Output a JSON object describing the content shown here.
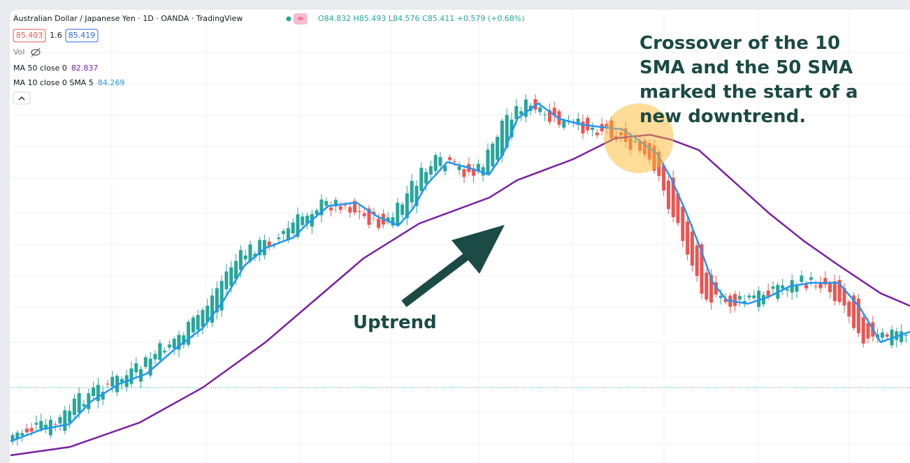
{
  "header": {
    "symbol": "Australian Dollar / Japanese Yen · 1D · OANDA · TradingView",
    "ohlc": "O84.832 H85.493 L84.576 C85.411 +0.579 (+0.68%)"
  },
  "legend": {
    "bid": "85.403",
    "spread": "1.6",
    "ask": "85.419",
    "volume": "Vol",
    "ma50": {
      "label": "MA 50 close 0",
      "value": "82.837"
    },
    "ma10": {
      "label": "MA 10 close 0 SMA 5",
      "value": "84.269"
    }
  },
  "annotations": {
    "crossover": [
      "Crossover of the 10",
      "SMA and the 50 SMA",
      "marked the start of a",
      "new downtrend."
    ],
    "uptrend": "Uptrend"
  }
}
